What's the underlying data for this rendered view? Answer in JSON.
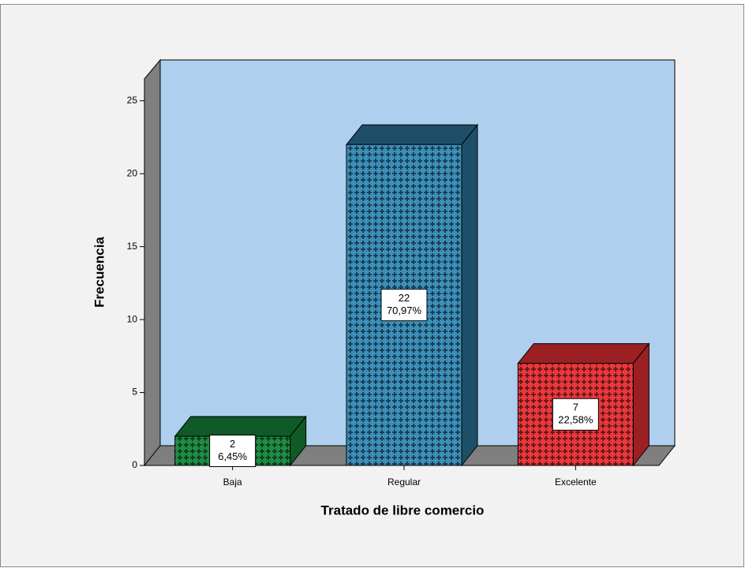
{
  "chart_data": {
    "type": "bar3d",
    "x_label": "Tratado de libre comercio",
    "y_label": "Frecuencia",
    "categories": [
      "Baja",
      "Regular",
      "Excelente"
    ],
    "values": [
      2,
      22,
      7
    ],
    "percent_labels": [
      "6,45%",
      "70,97%",
      "22,58%"
    ],
    "colors": [
      "#1f8c45",
      "#3b8fb9",
      "#e8383c"
    ],
    "top_colors": [
      "#0f5a27",
      "#1d5068",
      "#9a2024"
    ],
    "ylim": [
      0,
      26.5
    ],
    "yticks": [
      0,
      5,
      10,
      15,
      20,
      25
    ]
  }
}
